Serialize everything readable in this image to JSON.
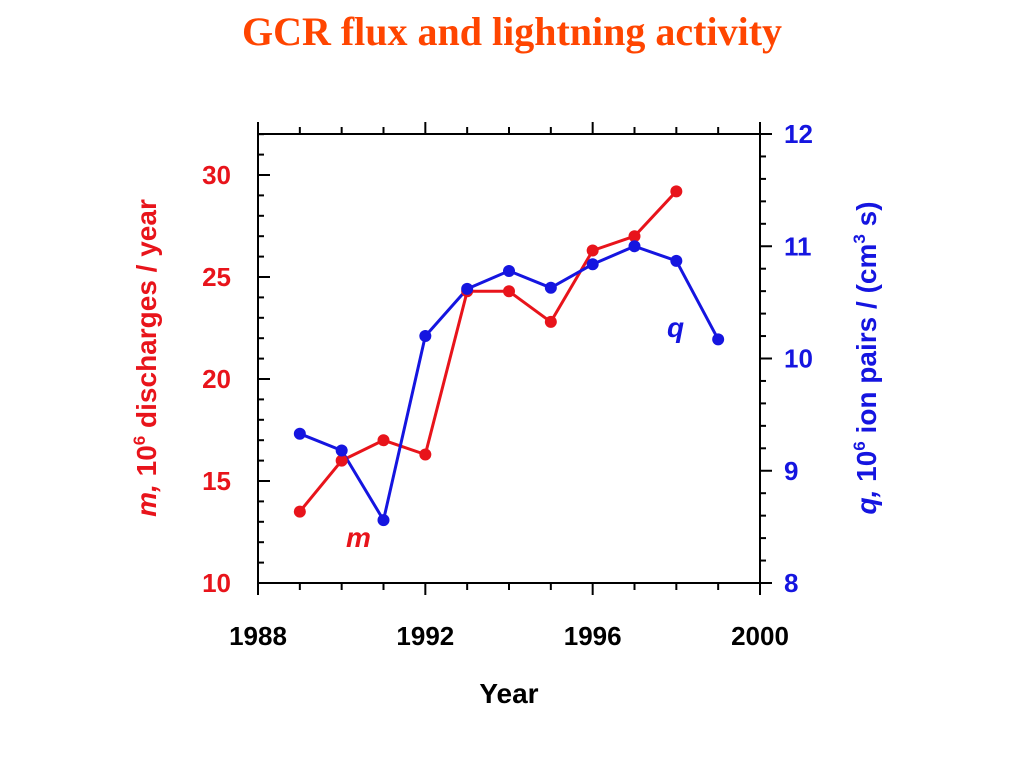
{
  "colors": {
    "title": "#ff4500",
    "left_axis": "#e8141b",
    "right_axis": "#1515e0",
    "frame": "#000000"
  },
  "chart_data": {
    "type": "line",
    "title": "GCR flux and lightning activity",
    "xlabel": "Year",
    "xlim": [
      1988,
      2000
    ],
    "xticks": [
      1988,
      1992,
      1996,
      2000
    ],
    "y_left": {
      "label_var": "m,",
      "label_base": " 10",
      "label_exp": "6",
      "label_rest": " discharges / year",
      "lim": [
        10,
        32
      ],
      "ticks": [
        10,
        15,
        20,
        25,
        30
      ]
    },
    "y_right": {
      "label_var": "q,",
      "label_base": " 10",
      "label_exp": "6",
      "label_mid": " ion pairs / (cm",
      "label_exp2": "3",
      "label_end": " s)",
      "lim": [
        8,
        12
      ],
      "ticks": [
        8,
        9,
        10,
        11,
        12
      ]
    },
    "series": [
      {
        "name": "m",
        "axis": "left",
        "color": "#e8141b",
        "x": [
          1989,
          1990,
          1991,
          1992,
          1993,
          1994,
          1995,
          1996,
          1997,
          1998
        ],
        "y": [
          13.5,
          16.0,
          17.0,
          16.3,
          24.3,
          24.3,
          22.8,
          26.3,
          27.0,
          29.2
        ]
      },
      {
        "name": "q",
        "axis": "right",
        "color": "#1515e0",
        "x": [
          1989,
          1990,
          1991,
          1992,
          1993,
          1994,
          1995,
          1996,
          1997,
          1998,
          1999
        ],
        "y": [
          9.33,
          9.18,
          8.56,
          10.2,
          10.62,
          10.78,
          10.63,
          10.84,
          11.0,
          10.87,
          10.17
        ]
      }
    ]
  }
}
